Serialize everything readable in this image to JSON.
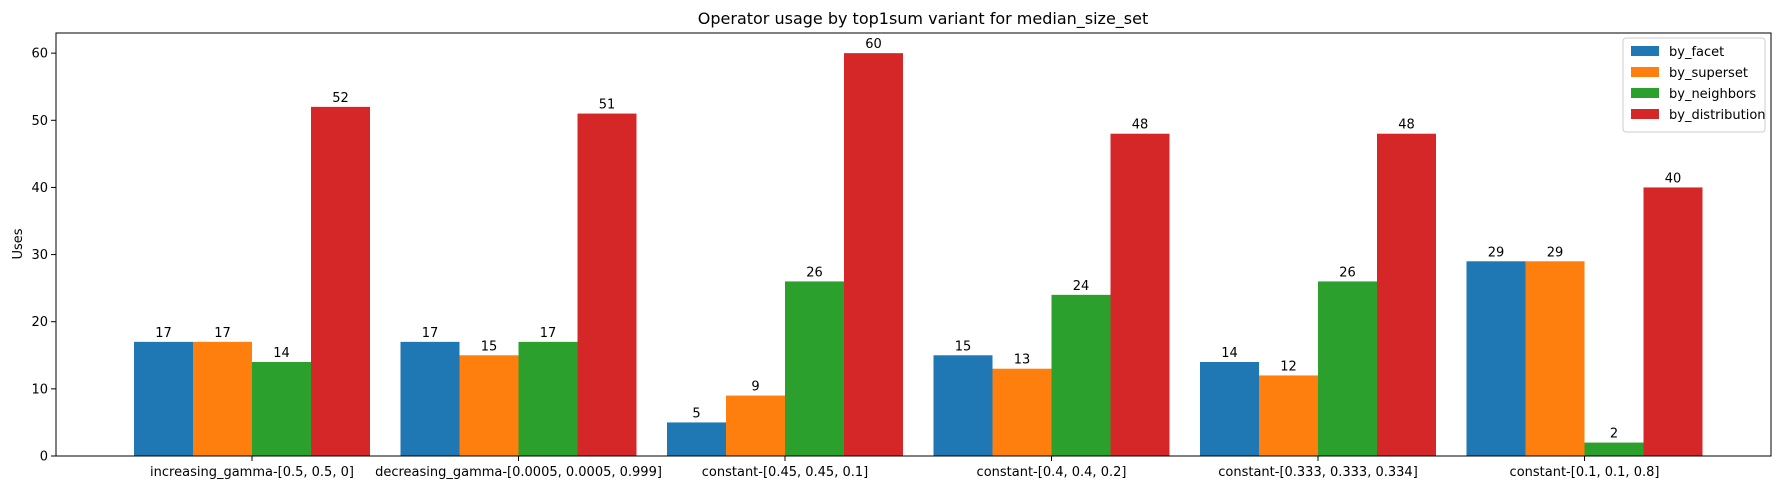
{
  "chart_data": {
    "type": "bar",
    "title": "Operator usage by top1sum variant for median_size_set",
    "xlabel": "",
    "ylabel": "Uses",
    "ylim": [
      0,
      63
    ],
    "yticks": [
      0,
      10,
      20,
      30,
      40,
      50,
      60
    ],
    "grid": false,
    "legend_position": "top-right",
    "categories": [
      "increasing_gamma-[0.5, 0.5, 0]",
      "decreasing_gamma-[0.0005, 0.0005, 0.999]",
      "constant-[0.45, 0.45, 0.1]",
      "constant-[0.4, 0.4, 0.2]",
      "constant-[0.333, 0.333, 0.334]",
      "constant-[0.1, 0.1, 0.8]"
    ],
    "series": [
      {
        "name": "by_facet",
        "color": "#1f77b4",
        "values": [
          17,
          17,
          5,
          15,
          14,
          29
        ]
      },
      {
        "name": "by_superset",
        "color": "#ff7f0e",
        "values": [
          17,
          15,
          9,
          13,
          12,
          29
        ]
      },
      {
        "name": "by_neighbors",
        "color": "#2ca02c",
        "values": [
          14,
          17,
          26,
          24,
          26,
          2
        ]
      },
      {
        "name": "by_distribution",
        "color": "#d62728",
        "values": [
          52,
          51,
          60,
          48,
          48,
          40
        ]
      }
    ]
  }
}
